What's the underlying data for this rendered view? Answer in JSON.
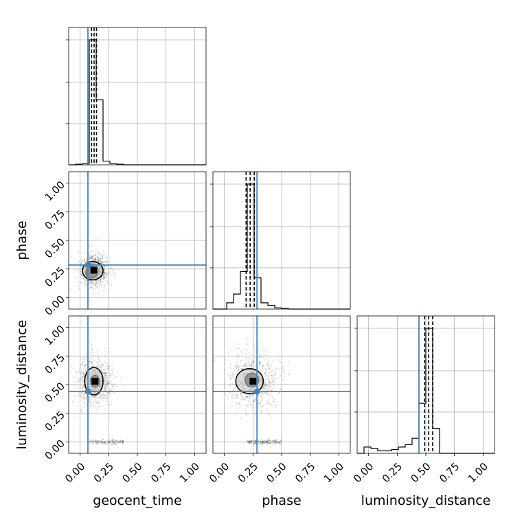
{
  "colors": {
    "truth": "#4682b4",
    "hist": "#000000",
    "grid": "#b0b0b0"
  },
  "chart_data": {
    "type": "corner",
    "parameters": [
      "geocent_time",
      "phase",
      "luminosity_distance"
    ],
    "axis_range": [
      -0.1,
      1.1
    ],
    "tick_labels": [
      "0.00",
      "0.25",
      "0.50",
      "0.75",
      "1.00"
    ],
    "tick_values": [
      0.0,
      0.25,
      0.5,
      0.75,
      1.0
    ],
    "grid": true,
    "truths": {
      "geocent_time": 0.068,
      "phase": 0.285,
      "luminosity_distance": 0.44
    },
    "histograms": {
      "geocent_time": {
        "bin_edges": [
          -0.1,
          -0.04,
          0.02,
          0.08,
          0.14,
          0.2,
          0.26,
          0.32,
          0.38,
          0.44,
          0.5,
          0.56,
          0.62,
          0.68,
          0.74,
          0.8,
          0.86,
          0.92,
          0.98,
          1.04,
          1.1
        ],
        "counts": [
          0,
          0.005,
          0.01,
          1.0,
          0.52,
          0.03,
          0.01,
          0.005,
          0,
          0,
          0,
          0,
          0,
          0,
          0,
          0,
          0,
          0,
          0,
          0
        ],
        "quantiles": [
          0.1,
          0.122,
          0.143
        ]
      },
      "phase": {
        "bin_edges": [
          -0.1,
          -0.04,
          0.02,
          0.08,
          0.14,
          0.2,
          0.26,
          0.32,
          0.38,
          0.44,
          0.5,
          0.56,
          0.62,
          0.68,
          0.74,
          0.8,
          0.86,
          0.92,
          0.98,
          1.04,
          1.1
        ],
        "counts": [
          0,
          0,
          0.05,
          0.12,
          0.3,
          1.0,
          0.25,
          0.05,
          0.03,
          0.01,
          0.005,
          0,
          0,
          0,
          0,
          0,
          0,
          0,
          0,
          0
        ],
        "quantiles": [
          0.19,
          0.225,
          0.262
        ]
      },
      "luminosity_distance": {
        "bin_edges": [
          -0.1,
          -0.04,
          0.02,
          0.08,
          0.14,
          0.2,
          0.26,
          0.32,
          0.38,
          0.44,
          0.5,
          0.56,
          0.62,
          0.68,
          0.74,
          0.8,
          0.86,
          0.92,
          0.98,
          1.04,
          1.1
        ],
        "counts": [
          0,
          0.05,
          0.04,
          0.02,
          0.02,
          0.03,
          0.05,
          0.07,
          0.12,
          0.4,
          1.0,
          0.2,
          0,
          0,
          0,
          0,
          0,
          0,
          0,
          0
        ],
        "quantiles": [
          0.49,
          0.525,
          0.56
        ]
      }
    },
    "scatter_pairs": [
      {
        "x": "geocent_time",
        "y": "phase",
        "center": [
          0.12,
          0.24
        ],
        "spread": [
          0.05,
          0.07
        ],
        "contours": [
          [
            0.1,
            0.22,
            0.05,
            0.05
          ],
          [
            0.11,
            0.235,
            0.09,
            0.08
          ]
        ]
      },
      {
        "x": "geocent_time",
        "y": "luminosity_distance",
        "center": [
          0.13,
          0.53
        ],
        "spread": [
          0.06,
          0.1
        ],
        "contours": [
          [
            0.13,
            0.53,
            0.04,
            0.05
          ],
          [
            0.12,
            0.53,
            0.08,
            0.12
          ]
        ]
      },
      {
        "x": "phase",
        "y": "luminosity_distance",
        "center": [
          0.25,
          0.53
        ],
        "spread": [
          0.09,
          0.12
        ],
        "contours": [
          [
            0.24,
            0.54,
            0.06,
            0.06
          ],
          [
            0.22,
            0.53,
            0.12,
            0.11
          ]
        ]
      }
    ]
  }
}
